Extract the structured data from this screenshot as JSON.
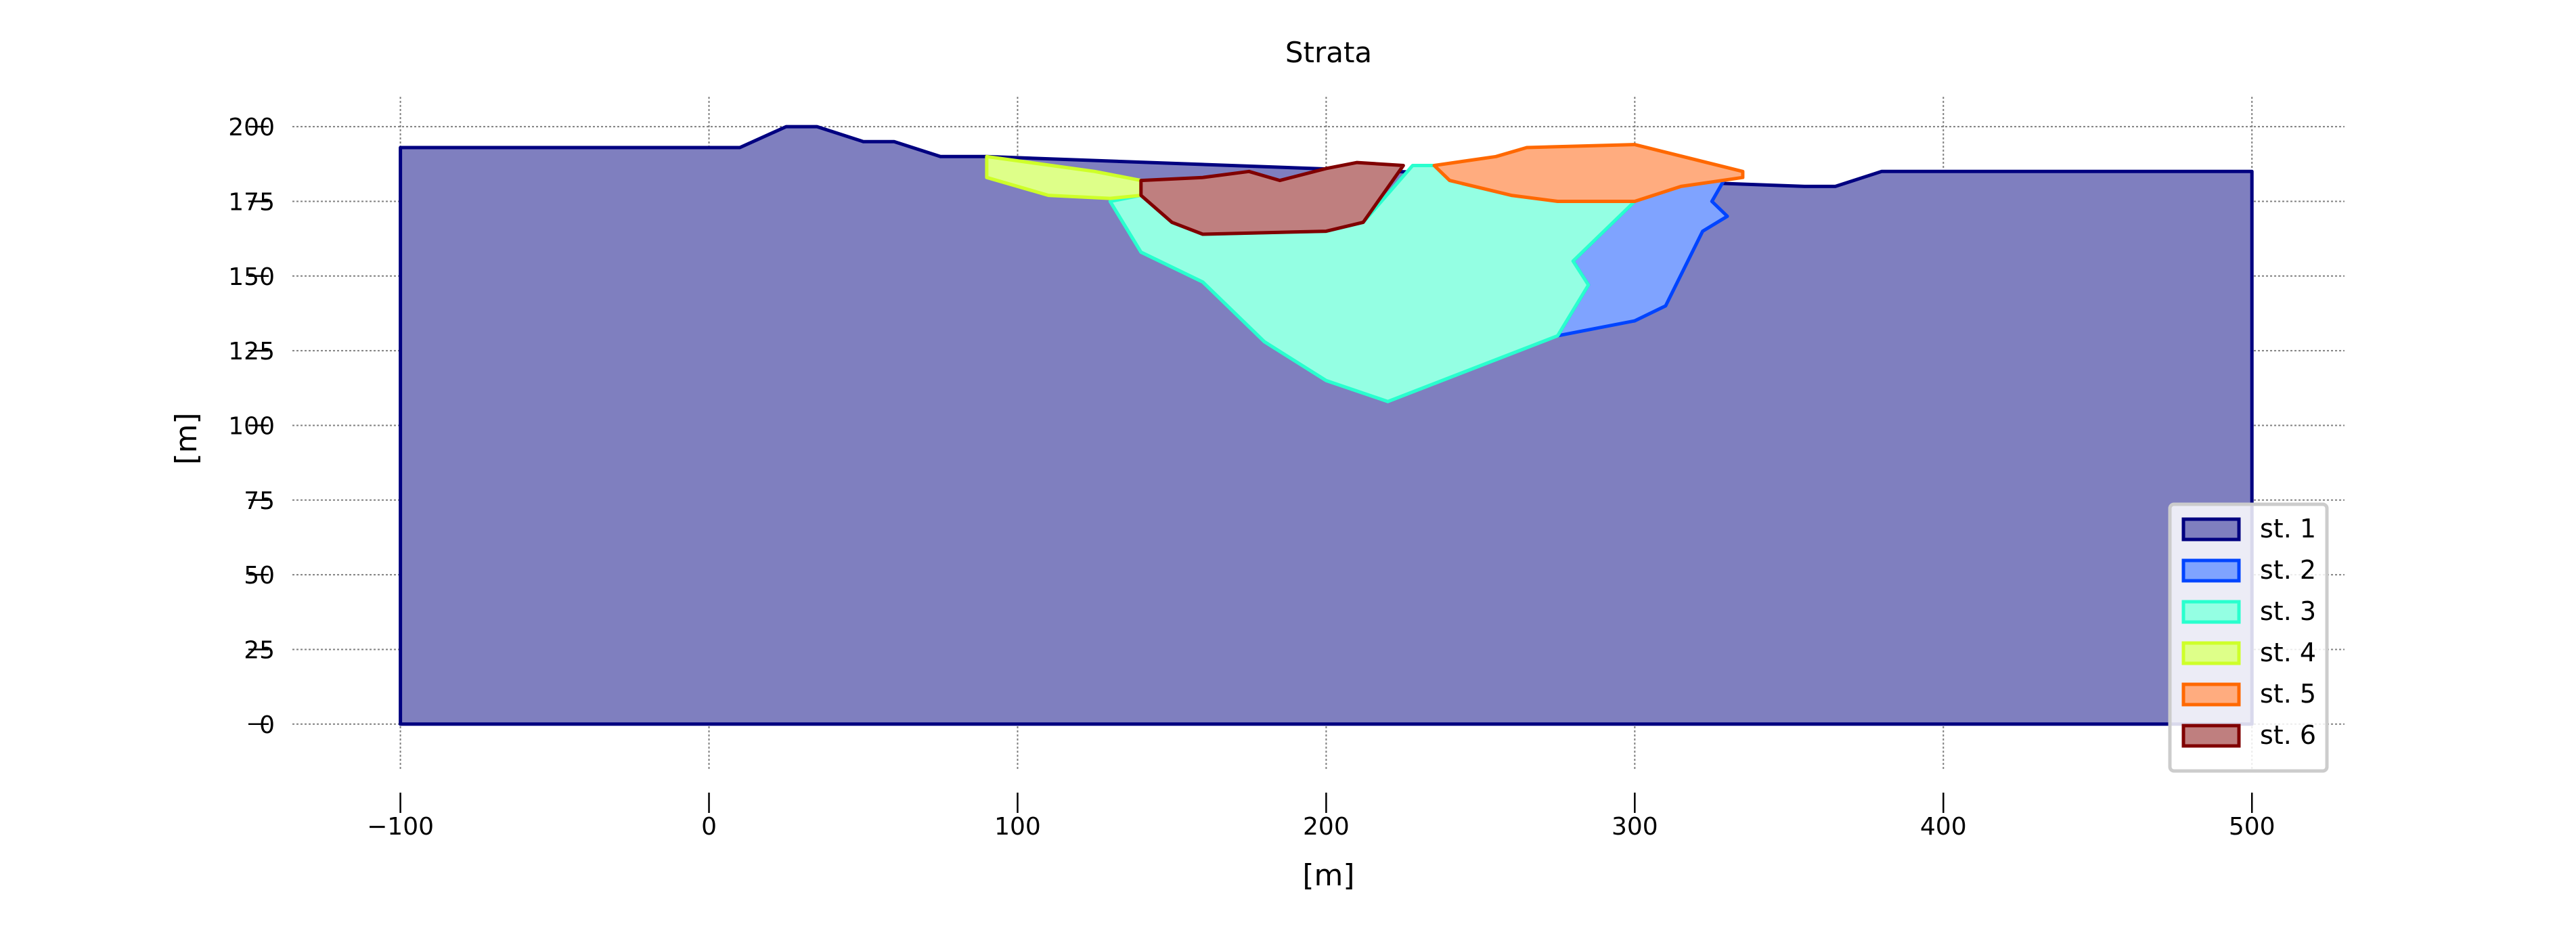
{
  "chart_data": {
    "type": "area",
    "title": "Strata",
    "xlabel": "[m]",
    "ylabel": "[m]",
    "xlim": [
      -135,
      530
    ],
    "ylim": [
      -15,
      210
    ],
    "x_ticks": [
      -100,
      0,
      100,
      200,
      300,
      400,
      500
    ],
    "x_tick_labels": [
      "−100",
      "0",
      "100",
      "200",
      "300",
      "400",
      "500"
    ],
    "y_ticks": [
      0,
      25,
      50,
      75,
      100,
      125,
      150,
      175,
      200
    ],
    "y_tick_labels": [
      "0",
      "25",
      "50",
      "75",
      "100",
      "125",
      "150",
      "175",
      "200"
    ],
    "grid": true,
    "legend_position": "lower-right",
    "series": [
      {
        "name": "st. 1",
        "fill": "#7f7fbf",
        "stroke": "#000080",
        "points": [
          [
            -100,
            0
          ],
          [
            -100,
            193
          ],
          [
            10,
            193
          ],
          [
            25,
            200
          ],
          [
            35,
            200
          ],
          [
            50,
            195
          ],
          [
            60,
            195
          ],
          [
            75,
            190
          ],
          [
            90,
            190
          ],
          [
            355,
            180
          ],
          [
            365,
            180
          ],
          [
            380,
            185
          ],
          [
            500,
            185
          ],
          [
            500,
            0
          ]
        ]
      },
      {
        "name": "st. 2",
        "fill": "#7fa3ff",
        "stroke": "#0044ff",
        "points": [
          [
            300,
            175
          ],
          [
            310,
            180
          ],
          [
            330,
            184
          ],
          [
            325,
            175
          ],
          [
            330,
            170
          ],
          [
            322,
            165
          ],
          [
            310,
            140
          ],
          [
            300,
            135
          ],
          [
            275,
            130
          ],
          [
            285,
            147
          ],
          [
            280,
            155
          ],
          [
            300,
            175
          ]
        ]
      },
      {
        "name": "st. 3",
        "fill": "#94ffe3",
        "stroke": "#29ffce",
        "points": [
          [
            130,
            175
          ],
          [
            140,
            158
          ],
          [
            160,
            148
          ],
          [
            180,
            128
          ],
          [
            200,
            115
          ],
          [
            220,
            108
          ],
          [
            275,
            130
          ],
          [
            285,
            147
          ],
          [
            280,
            155
          ],
          [
            300,
            175
          ],
          [
            290,
            175
          ],
          [
            260,
            177
          ],
          [
            240,
            182
          ],
          [
            235,
            187
          ],
          [
            228,
            187
          ],
          [
            212,
            168
          ],
          [
            200,
            165
          ],
          [
            160,
            164
          ],
          [
            150,
            168
          ],
          [
            140,
            177
          ],
          [
            130,
            175
          ]
        ]
      },
      {
        "name": "st. 4",
        "fill": "#deff89",
        "stroke": "#ceff29",
        "points": [
          [
            90,
            190
          ],
          [
            90,
            183
          ],
          [
            110,
            177
          ],
          [
            130,
            176
          ],
          [
            140,
            177
          ],
          [
            140,
            182
          ],
          [
            125,
            185
          ],
          [
            90,
            190
          ]
        ]
      },
      {
        "name": "st. 5",
        "fill": "#ffac7f",
        "stroke": "#ff6800",
        "points": [
          [
            235,
            187
          ],
          [
            255,
            190
          ],
          [
            265,
            193
          ],
          [
            300,
            194
          ],
          [
            335,
            185
          ],
          [
            335,
            183
          ],
          [
            315,
            180
          ],
          [
            300,
            175
          ],
          [
            275,
            175
          ],
          [
            260,
            177
          ],
          [
            240,
            182
          ],
          [
            235,
            187
          ]
        ]
      },
      {
        "name": "st. 6",
        "fill": "#bf7f7f",
        "stroke": "#800000",
        "points": [
          [
            140,
            182
          ],
          [
            160,
            183
          ],
          [
            175,
            185
          ],
          [
            185,
            182
          ],
          [
            200,
            186
          ],
          [
            210,
            188
          ],
          [
            225,
            187
          ],
          [
            212,
            168
          ],
          [
            200,
            165
          ],
          [
            160,
            164
          ],
          [
            150,
            168
          ],
          [
            140,
            177
          ],
          [
            140,
            182
          ]
        ]
      }
    ]
  }
}
